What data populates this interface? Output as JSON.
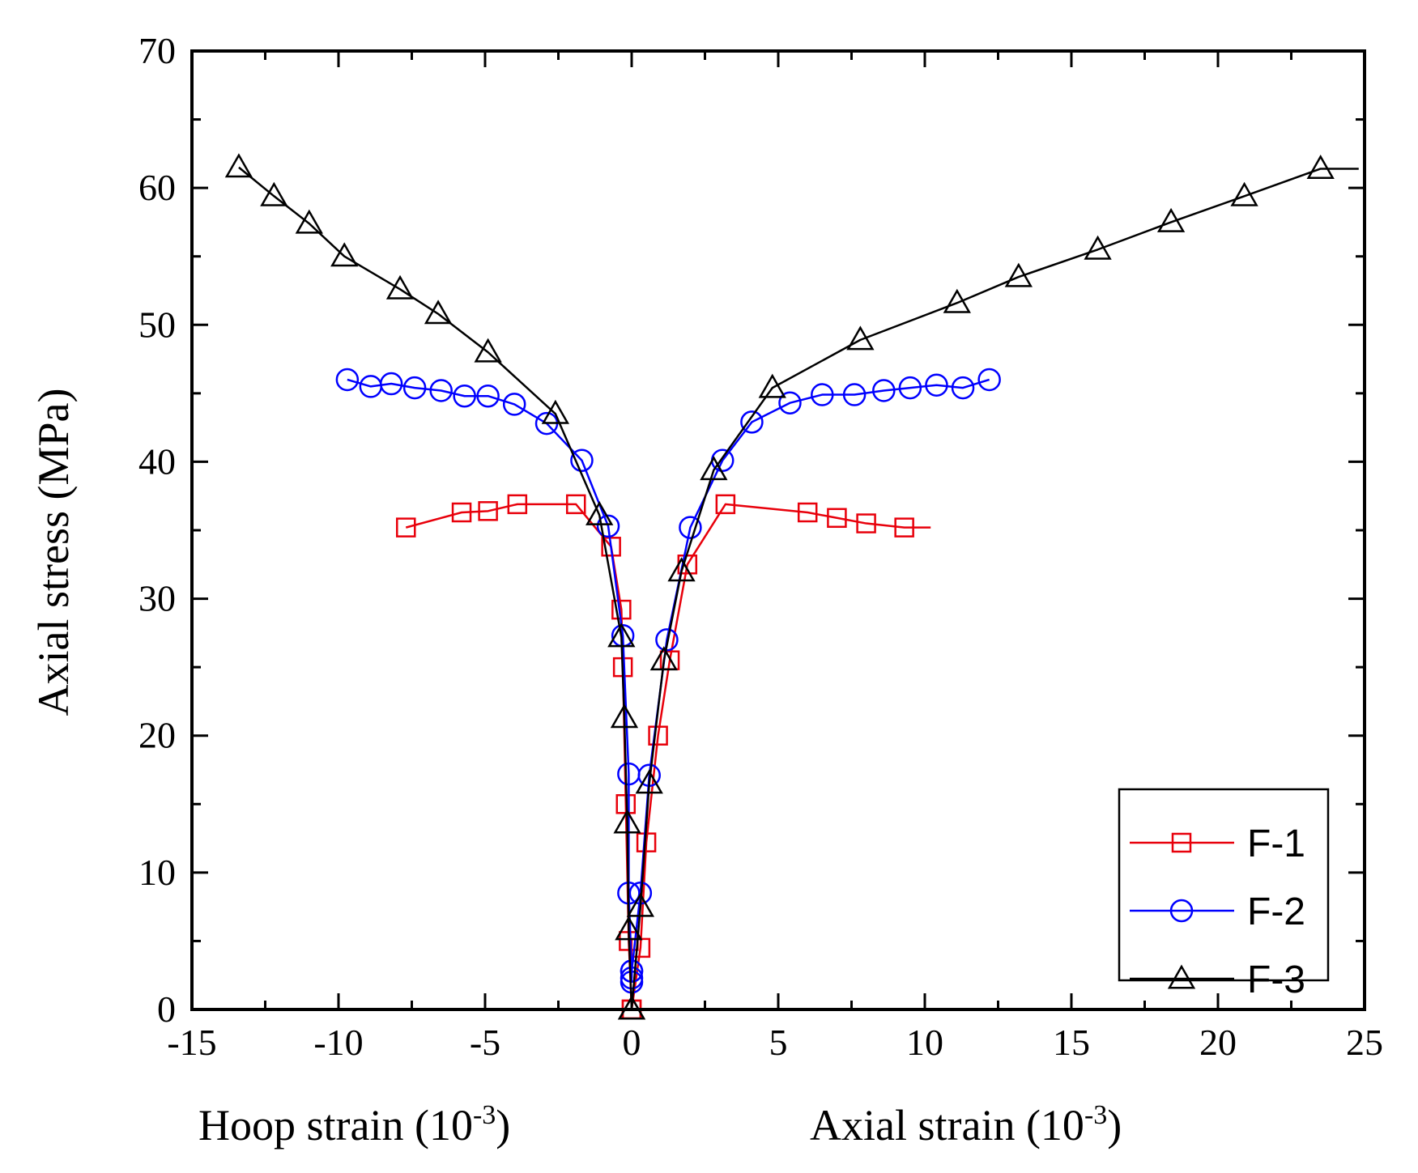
{
  "chart_data": {
    "type": "line",
    "title": "",
    "ylabel": "Axial stress (MPa)",
    "xlabel_left": "Hoop strain (10",
    "xlabel_right": "Axial strain (10",
    "xlabel_superscript": "-3",
    "xlabel_suffix": ")",
    "xlim": [
      -15,
      25
    ],
    "ylim": [
      0,
      70
    ],
    "x_ticks": [
      -15,
      -10,
      -5,
      0,
      5,
      10,
      15,
      20,
      25
    ],
    "x_tick_labels": [
      "-15",
      "-10",
      "-5",
      "0",
      "5",
      "10",
      "15",
      "20",
      "25"
    ],
    "y_ticks": [
      0,
      10,
      20,
      30,
      40,
      50,
      60,
      70
    ],
    "y_tick_labels": [
      "0",
      "10",
      "20",
      "30",
      "40",
      "50",
      "60",
      "70"
    ],
    "legend_position": "bottom-right",
    "series": [
      {
        "name": "F-1",
        "color": "#e8000b",
        "marker": "square",
        "hoop": [
          [
            -7.7,
            35.2
          ],
          [
            -5.8,
            36.3
          ],
          [
            -4.9,
            36.4
          ],
          [
            -3.9,
            36.9
          ],
          [
            -1.9,
            36.9
          ],
          [
            -0.7,
            33.8
          ],
          [
            -0.35,
            29.2
          ],
          [
            -0.3,
            25.0
          ],
          [
            -0.2,
            15.0
          ],
          [
            -0.1,
            5.0
          ],
          [
            0.0,
            0.0
          ]
        ],
        "axial": [
          [
            0.0,
            0.0
          ],
          [
            0.3,
            4.5
          ],
          [
            0.5,
            12.2
          ],
          [
            0.9,
            20.0
          ],
          [
            1.3,
            25.5
          ],
          [
            1.9,
            32.5
          ],
          [
            3.2,
            36.9
          ],
          [
            6.0,
            36.3
          ],
          [
            7.0,
            35.9
          ],
          [
            8.0,
            35.5
          ],
          [
            9.3,
            35.2
          ]
        ],
        "hoop_line_end": -7.7,
        "axial_line_end": 10.2
      },
      {
        "name": "F-2",
        "color": "#0000ff",
        "marker": "circle",
        "hoop": [
          [
            -9.7,
            46.0
          ],
          [
            -8.9,
            45.5
          ],
          [
            -8.2,
            45.7
          ],
          [
            -7.4,
            45.4
          ],
          [
            -6.5,
            45.2
          ],
          [
            -5.7,
            44.8
          ],
          [
            -4.9,
            44.8
          ],
          [
            -4.0,
            44.2
          ],
          [
            -2.9,
            42.8
          ],
          [
            -1.7,
            40.1
          ],
          [
            -0.8,
            35.3
          ],
          [
            -0.3,
            27.3
          ],
          [
            -0.1,
            17.2
          ],
          [
            -0.1,
            8.5
          ],
          [
            0.0,
            2.8
          ],
          [
            0.0,
            2.0
          ]
        ],
        "axial": [
          [
            0.0,
            2.3
          ],
          [
            0.0,
            2.8
          ],
          [
            0.3,
            8.5
          ],
          [
            0.6,
            17.1
          ],
          [
            1.2,
            27.0
          ],
          [
            2.0,
            35.2
          ],
          [
            3.1,
            40.1
          ],
          [
            4.1,
            42.9
          ],
          [
            5.4,
            44.3
          ],
          [
            6.5,
            44.9
          ],
          [
            7.6,
            44.9
          ],
          [
            8.6,
            45.2
          ],
          [
            9.5,
            45.4
          ],
          [
            10.4,
            45.6
          ],
          [
            11.3,
            45.4
          ],
          [
            12.2,
            46.0
          ]
        ],
        "hoop_line_end": -9.7,
        "axial_line_end": 12.2
      },
      {
        "name": "F-3",
        "color": "#000000",
        "marker": "triangle",
        "hoop": [
          [
            -13.4,
            61.5
          ],
          [
            -12.2,
            59.4
          ],
          [
            -11.0,
            57.4
          ],
          [
            -9.8,
            55.0
          ],
          [
            -7.9,
            52.6
          ],
          [
            -6.6,
            50.8
          ],
          [
            -4.9,
            48.0
          ],
          [
            -2.6,
            43.5
          ],
          [
            -1.1,
            36.1
          ],
          [
            -0.35,
            27.2
          ],
          [
            -0.25,
            21.3
          ],
          [
            -0.15,
            13.6
          ],
          [
            -0.1,
            5.8
          ],
          [
            0.0,
            0.0
          ]
        ],
        "axial": [
          [
            0.0,
            0.0
          ],
          [
            0.3,
            7.5
          ],
          [
            0.6,
            16.5
          ],
          [
            1.1,
            25.5
          ],
          [
            1.7,
            32.0
          ],
          [
            2.8,
            39.4
          ],
          [
            4.8,
            45.4
          ],
          [
            7.8,
            48.9
          ],
          [
            11.1,
            51.6
          ],
          [
            13.2,
            53.5
          ],
          [
            15.9,
            55.5
          ],
          [
            18.4,
            57.5
          ],
          [
            20.9,
            59.4
          ],
          [
            23.5,
            61.4
          ]
        ],
        "hoop_line_end": -13.4,
        "axial_line_end": 24.8
      }
    ]
  }
}
